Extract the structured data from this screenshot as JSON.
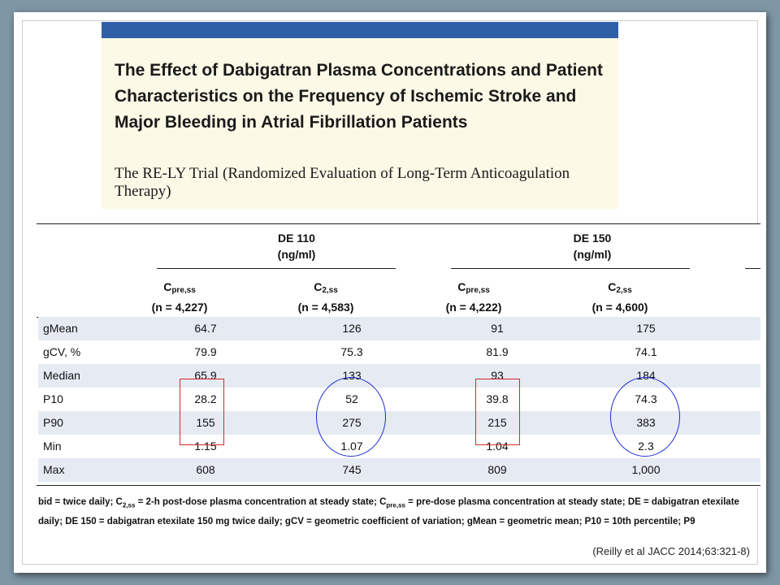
{
  "title": {
    "main": "The Effect of Dabigatran Plasma Concentrations and Patient Characteristics on the Frequency of Ischemic Stroke and Major Bleeding in Atrial Fibrillation Patients",
    "subtitle": "The RE-LY Trial (Randomized Evaluation of Long-Term Anticoagulation Therapy)"
  },
  "table": {
    "groups": [
      {
        "name": "DE 110",
        "unit": "(ng/ml)"
      },
      {
        "name": "DE 150",
        "unit": "(ng/ml)"
      }
    ],
    "columns": [
      {
        "base": "C",
        "sub": "pre,ss",
        "n": "(n = 4,227)"
      },
      {
        "base": "C",
        "sub": "2,ss",
        "n": "(n = 4,583)"
      },
      {
        "base": "C",
        "sub": "pre,ss",
        "n": "(n = 4,222)"
      },
      {
        "base": "C",
        "sub": "2,ss",
        "n": "(n = 4,600)"
      }
    ],
    "rows": [
      {
        "label": "gMean",
        "values": [
          "64.7",
          "126",
          "91",
          "175"
        ]
      },
      {
        "label": "gCV, %",
        "values": [
          "79.9",
          "75.3",
          "81.9",
          "74.1"
        ]
      },
      {
        "label": "Median",
        "values": [
          "65.9",
          "133",
          "93",
          "184"
        ]
      },
      {
        "label": "P10",
        "values": [
          "28.2",
          "52",
          "39.8",
          "74.3"
        ]
      },
      {
        "label": "P90",
        "values": [
          "155",
          "275",
          "215",
          "383"
        ]
      },
      {
        "label": "Min",
        "values": [
          "1.15",
          "1.07",
          "1.04",
          "2.3"
        ]
      },
      {
        "label": "Max",
        "values": [
          "608",
          "745",
          "809",
          "1,000"
        ]
      }
    ]
  },
  "footnote": {
    "line1_a": "bid = twice daily; C",
    "line1_sub1": "2,ss",
    "line1_b": " = 2-h post-dose plasma concentration at steady state; C",
    "line1_sub2": "pre,ss",
    "line1_c": " = pre-dose plasma concentration at steady state; DE = dabigatran etexilate",
    "line2": "daily; DE 150 = dabigatran etexilate 150 mg twice daily; gCV = geometric coefficient of variation; gMean = geometric mean; P10 = 10th percentile; P9"
  },
  "citation": "(Reilly et al JACC 2014;63:321-8)",
  "colors": {
    "background": "#7f96a4",
    "title_bar": "#2f5fa7",
    "title_panel": "#fcf9e7",
    "row_shade": "#e6eaf3",
    "annotation_rect": "#d12a2a",
    "annotation_oval": "#1f2fd4"
  }
}
